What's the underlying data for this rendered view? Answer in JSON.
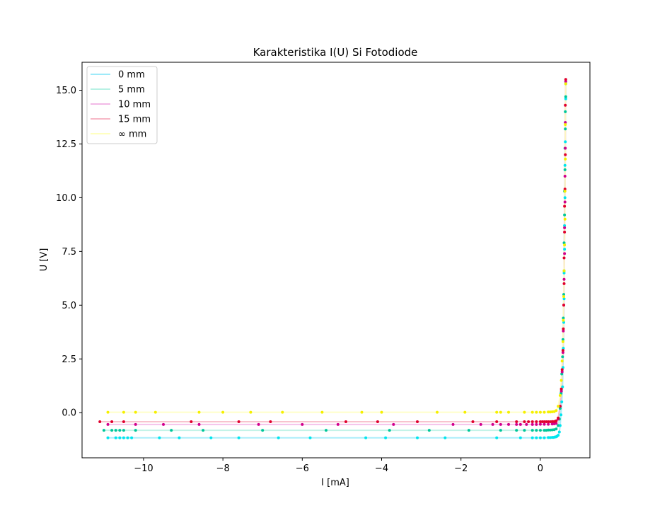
{
  "chart_data": {
    "type": "line",
    "title": "Karakteristika I(U) Si Fotodiode",
    "xlabel": "I [mA]",
    "ylabel": "U [V]",
    "xlim": [
      -11.55,
      1.25
    ],
    "ylim": [
      -2.1,
      16.3
    ],
    "x_ticks": [
      -10,
      -8,
      -6,
      -4,
      -2,
      0
    ],
    "x_tick_labels": [
      "−10",
      "−8",
      "−6",
      "−4",
      "−2",
      "0"
    ],
    "y_ticks": [
      0.0,
      2.5,
      5.0,
      7.5,
      10.0,
      12.5,
      15.0
    ],
    "y_tick_labels": [
      "0.0",
      "2.5",
      "5.0",
      "7.5",
      "10.0",
      "12.5",
      "15.0"
    ],
    "grid": false,
    "legend_position": "top-left",
    "series": [
      {
        "name": "0 mm",
        "line_color": "#9eeaf9",
        "marker_color": "#00e5ee",
        "x": [
          -10.9,
          -10.7,
          -10.6,
          -10.5,
          -10.4,
          -10.3,
          -9.6,
          -9.1,
          -8.3,
          -7.6,
          -6.6,
          -5.8,
          -4.4,
          -3.9,
          -3.1,
          -2.4,
          -1.1,
          -0.5,
          -0.2,
          -0.1,
          0.0,
          0.1,
          0.2,
          0.25,
          0.3,
          0.33,
          0.36,
          0.38,
          0.4,
          0.42,
          0.45,
          0.48,
          0.5,
          0.52,
          0.54,
          0.56,
          0.57,
          0.58,
          0.59,
          0.6,
          0.6,
          0.61,
          0.61,
          0.62,
          0.62,
          0.63,
          0.63,
          0.64,
          0.64
        ],
        "y": [
          -1.17,
          -1.17,
          -1.17,
          -1.17,
          -1.17,
          -1.17,
          -1.17,
          -1.17,
          -1.17,
          -1.17,
          -1.17,
          -1.17,
          -1.17,
          -1.17,
          -1.17,
          -1.17,
          -1.17,
          -1.17,
          -1.17,
          -1.17,
          -1.17,
          -1.17,
          -1.16,
          -1.16,
          -1.15,
          -1.15,
          -1.14,
          -1.13,
          -1.12,
          -1.1,
          -1.05,
          -0.9,
          -0.6,
          -0.1,
          0.5,
          1.2,
          2.1,
          3.0,
          4.2,
          5.3,
          6.5,
          7.6,
          8.7,
          10.0,
          11.5,
          12.6,
          13.5,
          14.6,
          15.4
        ]
      },
      {
        "name": "5 mm",
        "line_color": "#b8f1e4",
        "marker_color": "#00c79a",
        "x": [
          -11.0,
          -10.8,
          -10.7,
          -10.6,
          -10.5,
          -10.2,
          -9.3,
          -8.5,
          -7.0,
          -5.4,
          -3.8,
          -2.8,
          -1.8,
          -1.0,
          -0.6,
          -0.4,
          -0.2,
          -0.1,
          0.0,
          0.1,
          0.15,
          0.2,
          0.25,
          0.3,
          0.35,
          0.4,
          0.45,
          0.48,
          0.5,
          0.52,
          0.54,
          0.56,
          0.57,
          0.58,
          0.59,
          0.6,
          0.6,
          0.61,
          0.61,
          0.62,
          0.62,
          0.63,
          0.63,
          0.64,
          0.64
        ],
        "y": [
          -0.82,
          -0.82,
          -0.82,
          -0.82,
          -0.82,
          -0.82,
          -0.82,
          -0.82,
          -0.82,
          -0.82,
          -0.82,
          -0.82,
          -0.82,
          -0.82,
          -0.82,
          -0.82,
          -0.82,
          -0.82,
          -0.82,
          -0.82,
          -0.82,
          -0.81,
          -0.81,
          -0.8,
          -0.79,
          -0.76,
          -0.6,
          -0.3,
          0.2,
          0.9,
          1.8,
          2.6,
          3.4,
          4.4,
          5.5,
          6.6,
          7.9,
          9.2,
          10.3,
          11.3,
          12.3,
          13.2,
          14.0,
          14.7,
          15.3
        ]
      },
      {
        "name": "10 mm",
        "line_color": "#f2b9e7",
        "marker_color": "#d2008c",
        "x": [
          -10.9,
          -10.2,
          -9.5,
          -8.6,
          -7.1,
          -6.0,
          -5.1,
          -3.7,
          -2.2,
          -1.5,
          -1.2,
          -1.0,
          -0.8,
          -0.6,
          -0.5,
          -0.35,
          -0.2,
          -0.1,
          0.0,
          0.1,
          0.2,
          0.3,
          0.35,
          0.4,
          0.45,
          0.5,
          0.53,
          0.55,
          0.57,
          0.58,
          0.59,
          0.6,
          0.61,
          0.61,
          0.62,
          0.62,
          0.63,
          0.63,
          0.64
        ],
        "y": [
          -0.55,
          -0.55,
          -0.55,
          -0.55,
          -0.55,
          -0.55,
          -0.55,
          -0.55,
          -0.55,
          -0.55,
          -0.55,
          -0.55,
          -0.55,
          -0.55,
          -0.55,
          -0.55,
          -0.55,
          -0.55,
          -0.54,
          -0.54,
          -0.54,
          -0.53,
          -0.52,
          -0.5,
          -0.3,
          0.3,
          1.0,
          1.9,
          2.8,
          3.8,
          5.0,
          6.2,
          7.4,
          8.6,
          9.8,
          11.0,
          12.3,
          13.5,
          15.4
        ]
      },
      {
        "name": "15 mm",
        "line_color": "#f7b8c6",
        "marker_color": "#e0002e",
        "x": [
          -11.1,
          -10.8,
          -10.5,
          -8.8,
          -7.6,
          -6.8,
          -4.9,
          -4.1,
          -3.1,
          -1.7,
          -1.1,
          -0.6,
          -0.4,
          -0.3,
          -0.2,
          -0.1,
          0.0,
          0.05,
          0.1,
          0.15,
          0.2,
          0.25,
          0.3,
          0.35,
          0.38,
          0.4,
          0.45,
          0.5,
          0.53,
          0.55,
          0.57,
          0.58,
          0.59,
          0.6,
          0.6,
          0.61,
          0.61,
          0.62,
          0.63,
          0.63,
          0.64
        ],
        "y": [
          -0.42,
          -0.42,
          -0.42,
          -0.42,
          -0.42,
          -0.42,
          -0.42,
          -0.42,
          -0.42,
          -0.42,
          -0.42,
          -0.42,
          -0.42,
          -0.42,
          -0.42,
          -0.42,
          -0.42,
          -0.42,
          -0.42,
          -0.42,
          -0.42,
          -0.42,
          -0.41,
          -0.41,
          -0.4,
          -0.38,
          -0.25,
          0.3,
          1.1,
          2.0,
          2.9,
          3.9,
          5.0,
          6.0,
          7.2,
          8.4,
          9.6,
          10.4,
          12.0,
          14.3,
          15.5
        ]
      },
      {
        "name": "∞ mm",
        "line_color": "#ffffc0",
        "marker_color": "#f5f000",
        "x": [
          -10.9,
          -10.5,
          -10.2,
          -9.7,
          -8.6,
          -8.0,
          -7.3,
          -6.5,
          -5.5,
          -4.5,
          -4.0,
          -2.6,
          -1.9,
          -1.1,
          -1.0,
          -0.8,
          -0.4,
          -0.2,
          -0.1,
          0.0,
          0.1,
          0.2,
          0.25,
          0.3,
          0.35,
          0.4,
          0.45,
          0.5,
          0.53,
          0.55,
          0.57,
          0.58,
          0.59,
          0.6,
          0.61,
          0.62,
          0.62,
          0.63,
          0.63,
          0.64
        ],
        "y": [
          0.02,
          0.02,
          0.02,
          0.02,
          0.02,
          0.02,
          0.02,
          0.02,
          0.02,
          0.02,
          0.02,
          0.02,
          0.02,
          0.02,
          0.02,
          0.02,
          0.02,
          0.02,
          0.02,
          0.02,
          0.02,
          0.03,
          0.03,
          0.04,
          0.05,
          0.1,
          0.3,
          0.8,
          1.5,
          2.4,
          3.3,
          4.3,
          5.4,
          6.6,
          7.8,
          9.0,
          10.3,
          11.8,
          13.4,
          15.3
        ]
      }
    ]
  }
}
